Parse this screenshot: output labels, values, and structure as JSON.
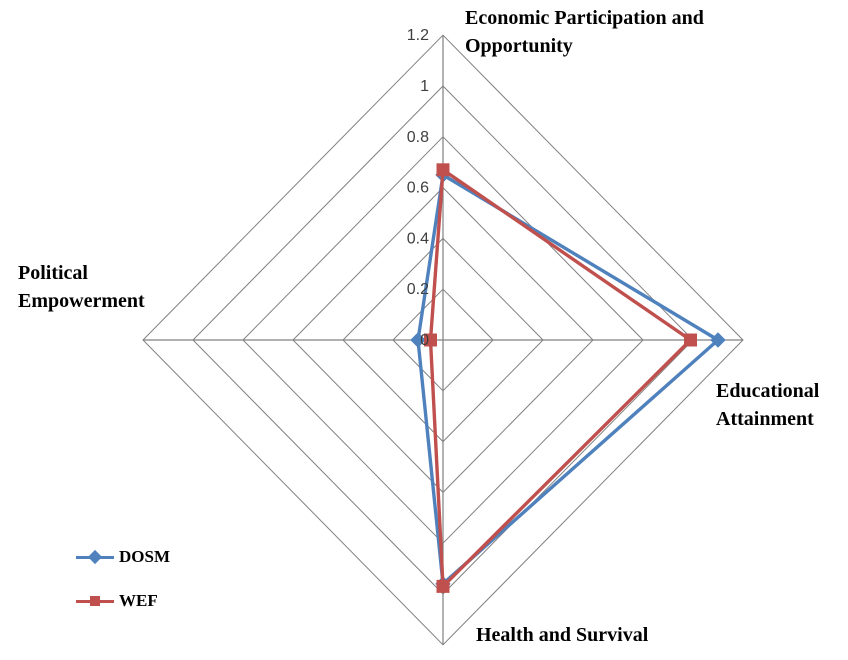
{
  "chart_data": {
    "type": "radar",
    "categories": [
      "Economic Participation and Opportunity",
      "Educational Attainment",
      "Health and Survival",
      "Political Empowerment"
    ],
    "series": [
      {
        "name": "DOSM",
        "color": "#4F81BD",
        "marker": "diamond",
        "values": [
          0.65,
          1.1,
          0.96,
          0.1
        ]
      },
      {
        "name": "WEF",
        "color": "#C0504D",
        "marker": "square",
        "values": [
          0.67,
          0.99,
          0.97,
          0.05
        ]
      }
    ],
    "rmax": 1.2,
    "tick_step": 0.2,
    "tick_labels": [
      "0",
      "0.2",
      "0.4",
      "0.6",
      "0.8",
      "1",
      "1.2"
    ],
    "grid": true,
    "gridline_color": "#808080",
    "tick_color": "#3F3F3F",
    "legend_position": "bottom-left"
  },
  "axis_labels": {
    "economic": {
      "line1": "Economic Participation and",
      "line2": "Opportunity"
    },
    "educational": {
      "line1": "Educational",
      "line2": "Attainment"
    },
    "health": {
      "line1": "Health and Survival"
    },
    "political": {
      "line1": "Political",
      "line2": "Empowerment"
    }
  },
  "legend": {
    "items": [
      {
        "label": "DOSM",
        "color": "#4F81BD",
        "marker": "diamond"
      },
      {
        "label": "WEF",
        "color": "#C0504D",
        "marker": "square"
      }
    ]
  }
}
